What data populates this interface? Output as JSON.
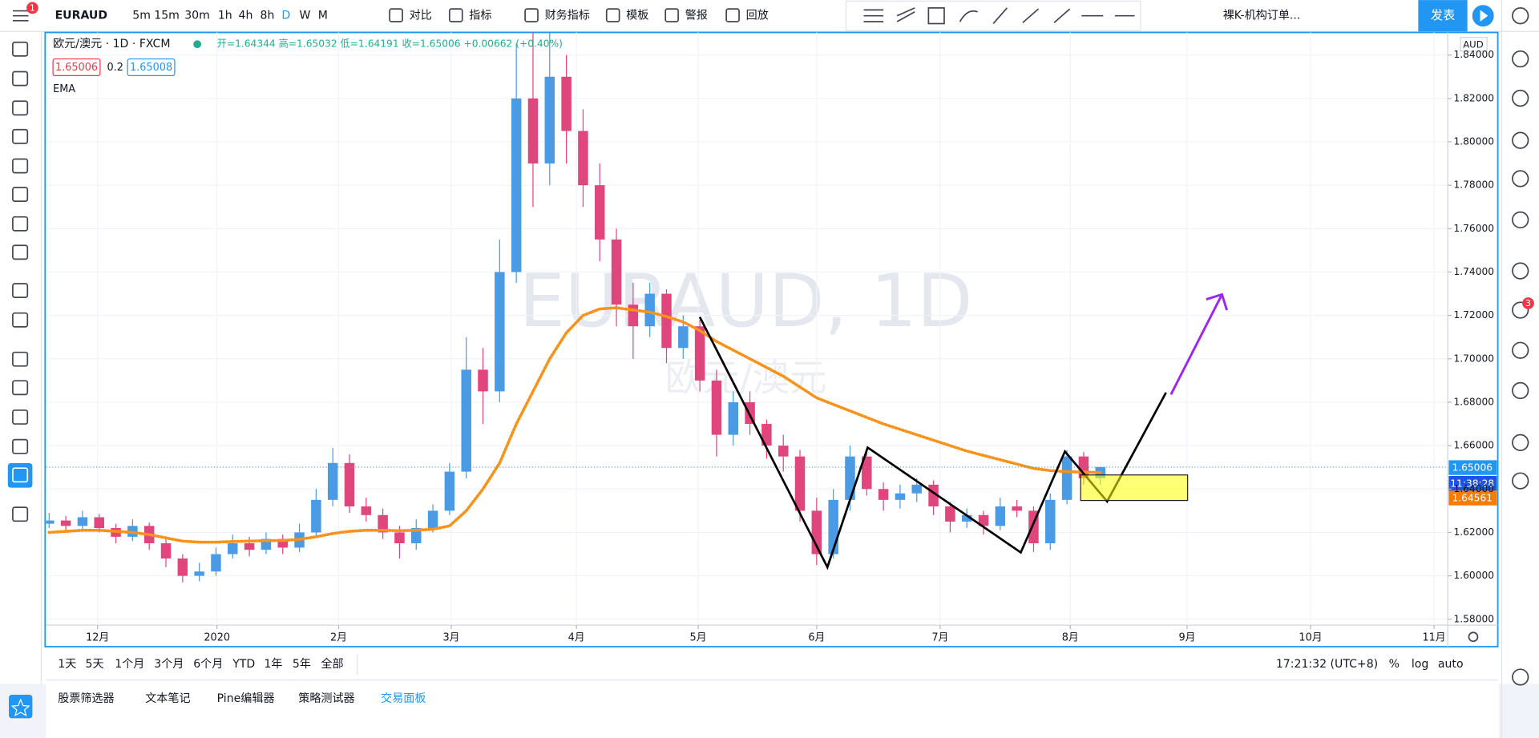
{
  "toolbar": {
    "symbol": "EURAUD",
    "intervals": [
      "5m",
      "15m",
      "30m",
      "1h",
      "4h",
      "8h",
      "D",
      "W",
      "M"
    ],
    "buttons": [
      "对比",
      "指标",
      "财务指标",
      "模板",
      "警报",
      "回放"
    ],
    "layout_name": "裸K-机构订单...",
    "publish": "发表",
    "alert_badge": "1",
    "chat_badge": "3"
  },
  "legend": {
    "title": "欧元/澳元 · 1D · FXCM",
    "ohlc": "开=1.64344  高=1.65032  低=1.64191  收=1.65006  +0.00662 (+0.40%)",
    "bid": "1.65006",
    "spread": "0.2",
    "ask": "1.65008"
  },
  "price_scale": {
    "currency": "AUD",
    "last": "1.65006",
    "countdown": "11:38:28",
    "level": "1.64561"
  },
  "chart_data": {
    "type": "candlestick",
    "watermark": "EURAUD, 1D",
    "watermark_sub": "欧元/澳元",
    "up_color": "#4a9be3",
    "down_color": "#e0457b",
    "xlim": [
      -0.18,
      83.82
    ],
    "ylim": [
      1.5773,
      1.8504
    ],
    "xticks": [
      {
        "value": 2.9,
        "label": "12月"
      },
      {
        "value": 10.06,
        "label": "2020"
      },
      {
        "value": 17.35,
        "label": "2月"
      },
      {
        "value": 24.1,
        "label": "3月"
      },
      {
        "value": 31.6,
        "label": "4月"
      },
      {
        "value": 38.9,
        "label": "5月"
      },
      {
        "value": 46,
        "label": "6月"
      },
      {
        "value": 53.4,
        "label": "7月"
      },
      {
        "value": 61.2,
        "label": "8月"
      },
      {
        "value": 68.2,
        "label": "9月"
      },
      {
        "value": 75.6,
        "label": "10月"
      },
      {
        "value": 83,
        "label": "11月"
      }
    ],
    "yticks": [
      {
        "value": 1.58,
        "label": "1.58000"
      },
      {
        "value": 1.6,
        "label": "1.60000"
      },
      {
        "value": 1.62,
        "label": "1.62000"
      },
      {
        "value": 1.64,
        "label": "1.64000"
      },
      {
        "value": 1.66,
        "label": "1.66000"
      },
      {
        "value": 1.68,
        "label": "1.68000"
      },
      {
        "value": 1.7,
        "label": "1.70000"
      },
      {
        "value": 1.72,
        "label": "1.72000"
      },
      {
        "value": 1.74,
        "label": "1.74000"
      },
      {
        "value": 1.76,
        "label": "1.76000"
      },
      {
        "value": 1.78,
        "label": "1.78000"
      },
      {
        "value": 1.8,
        "label": "1.80000"
      },
      {
        "value": 1.82,
        "label": "1.82000"
      },
      {
        "value": 1.84,
        "label": "1.84000"
      }
    ],
    "open": [
      1.624,
      1.6255,
      1.623,
      1.627,
      1.622,
      1.618,
      1.623,
      1.615,
      1.608,
      1.6,
      1.602,
      1.61,
      1.615,
      1.612,
      1.617,
      1.613,
      1.62,
      1.635,
      1.652,
      1.632,
      1.628,
      1.62,
      1.615,
      1.622,
      1.63,
      1.648,
      1.695,
      1.685,
      1.74,
      1.82,
      1.79,
      1.83,
      1.805,
      1.78,
      1.755,
      1.725,
      1.715,
      1.73,
      1.705,
      1.715,
      1.69,
      1.665,
      1.68,
      1.67,
      1.66,
      1.655,
      1.63,
      1.61,
      1.635,
      1.655,
      1.64,
      1.635,
      1.638,
      1.642,
      1.632,
      1.625,
      1.628,
      1.623,
      1.632,
      1.63,
      1.615,
      1.635,
      1.655,
      1.645
    ],
    "high": [
      1.629,
      1.6275,
      1.63,
      1.6285,
      1.624,
      1.626,
      1.6245,
      1.617,
      1.61,
      1.606,
      1.613,
      1.619,
      1.618,
      1.62,
      1.619,
      1.624,
      1.64,
      1.659,
      1.656,
      1.636,
      1.631,
      1.623,
      1.626,
      1.633,
      1.652,
      1.71,
      1.705,
      1.755,
      1.845,
      1.86,
      1.855,
      1.84,
      1.815,
      1.79,
      1.76,
      1.735,
      1.735,
      1.732,
      1.72,
      1.718,
      1.695,
      1.685,
      1.685,
      1.672,
      1.665,
      1.658,
      1.636,
      1.64,
      1.66,
      1.658,
      1.643,
      1.642,
      1.645,
      1.644,
      1.634,
      1.631,
      1.63,
      1.636,
      1.635,
      1.632,
      1.638,
      1.658,
      1.657,
      1.6503
    ],
    "low": [
      1.622,
      1.621,
      1.6215,
      1.62,
      1.615,
      1.616,
      1.612,
      1.604,
      1.597,
      1.5975,
      1.6,
      1.608,
      1.609,
      1.61,
      1.61,
      1.611,
      1.618,
      1.632,
      1.629,
      1.625,
      1.617,
      1.608,
      1.612,
      1.62,
      1.628,
      1.645,
      1.67,
      1.68,
      1.735,
      1.77,
      1.78,
      1.79,
      1.77,
      1.745,
      1.715,
      1.7,
      1.71,
      1.698,
      1.7,
      1.685,
      1.655,
      1.66,
      1.665,
      1.654,
      1.648,
      1.625,
      1.605,
      1.608,
      1.63,
      1.637,
      1.63,
      1.631,
      1.634,
      1.628,
      1.62,
      1.622,
      1.619,
      1.621,
      1.627,
      1.611,
      1.612,
      1.633,
      1.642,
      1.6419
    ],
    "close": [
      1.6255,
      1.623,
      1.627,
      1.622,
      1.618,
      1.623,
      1.615,
      1.608,
      1.6,
      1.602,
      1.61,
      1.615,
      1.612,
      1.617,
      1.613,
      1.62,
      1.635,
      1.652,
      1.632,
      1.628,
      1.62,
      1.615,
      1.622,
      1.63,
      1.648,
      1.695,
      1.685,
      1.74,
      1.82,
      1.79,
      1.83,
      1.805,
      1.78,
      1.755,
      1.725,
      1.715,
      1.73,
      1.705,
      1.715,
      1.69,
      1.665,
      1.68,
      1.67,
      1.66,
      1.655,
      1.63,
      1.61,
      1.635,
      1.655,
      1.64,
      1.635,
      1.638,
      1.642,
      1.632,
      1.625,
      1.628,
      1.623,
      1.632,
      1.63,
      1.615,
      1.635,
      1.655,
      1.645,
      1.6501
    ],
    "ema": {
      "name": "EMA",
      "color": "#f7931a",
      "values": [
        1.62,
        1.6205,
        1.621,
        1.621,
        1.6205,
        1.62,
        1.619,
        1.6175,
        1.616,
        1.6155,
        1.6155,
        1.6158,
        1.616,
        1.6162,
        1.6163,
        1.6168,
        1.618,
        1.6195,
        1.6205,
        1.621,
        1.621,
        1.6208,
        1.621,
        1.6215,
        1.623,
        1.63,
        1.64,
        1.652,
        1.67,
        1.685,
        1.7,
        1.712,
        1.72,
        1.723,
        1.7235,
        1.7225,
        1.7215,
        1.7195,
        1.717,
        1.713,
        1.708,
        1.704,
        1.7,
        1.696,
        1.692,
        1.687,
        1.682,
        1.679,
        1.676,
        1.673,
        1.67,
        1.6675,
        1.665,
        1.6625,
        1.66,
        1.6575,
        1.6555,
        1.6535,
        1.6515,
        1.6495,
        1.6485,
        1.648,
        1.6478,
        1.6476
      ]
    }
  },
  "bottom_bar": {
    "ranges": [
      "1天",
      "5天",
      "1个月",
      "3个月",
      "6个月",
      "YTD",
      "1年",
      "5年",
      "全部"
    ],
    "clock": "17:21:32 (UTC+8)",
    "percent": "%",
    "log": "log",
    "auto": "auto"
  },
  "tabs": [
    "股票筛选器",
    "文本笔记",
    "Pine编辑器",
    "策略测试器",
    "交易面板"
  ]
}
